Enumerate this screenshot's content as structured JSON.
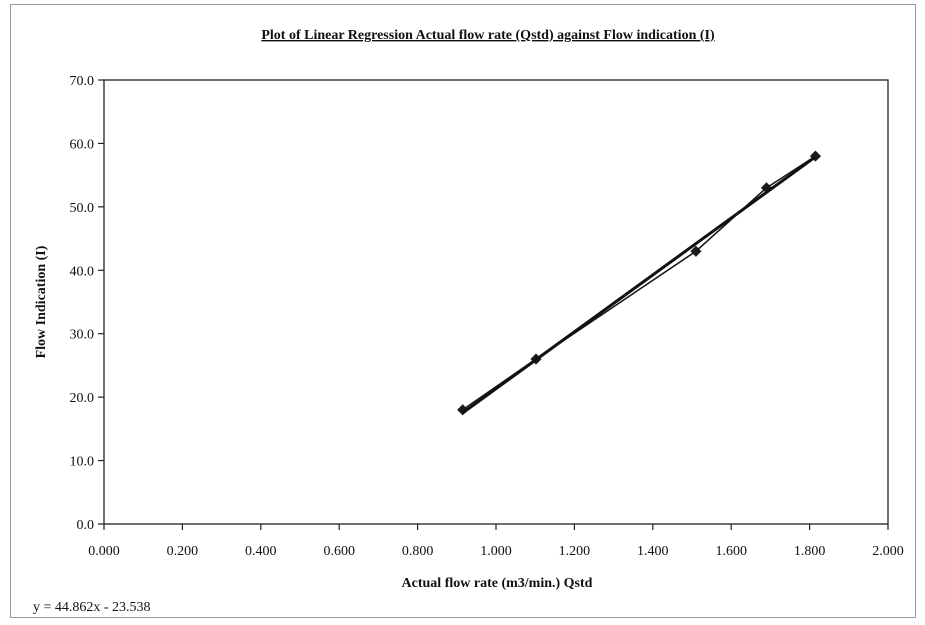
{
  "chart_data": {
    "type": "scatter",
    "title": "Plot of Linear Regression Actual flow rate (Qstd) against Flow indication (I)",
    "xlabel": "Actual flow rate (m3/min.) Qstd",
    "ylabel": "Flow Indication (I)",
    "xlim": [
      0,
      2.0
    ],
    "ylim": [
      0,
      70
    ],
    "x_ticks": [
      "0.000",
      "0.200",
      "0.400",
      "0.600",
      "0.800",
      "1.000",
      "1.200",
      "1.400",
      "1.600",
      "1.800",
      "2.000"
    ],
    "y_ticks": [
      "0.0",
      "10.0",
      "20.0",
      "30.0",
      "40.0",
      "50.0",
      "60.0",
      "70.0"
    ],
    "grid": false,
    "legend": "none",
    "series": [
      {
        "marker": "diamond",
        "connected": true,
        "color": "#1a1a1a",
        "points": [
          {
            "x": 0.915,
            "y": 18.0
          },
          {
            "x": 1.102,
            "y": 26.0
          },
          {
            "x": 1.51,
            "y": 43.0
          },
          {
            "x": 1.69,
            "y": 53.0
          },
          {
            "x": 1.815,
            "y": 58.0
          }
        ]
      }
    ],
    "trendline": {
      "type": "linear",
      "slope": 44.862,
      "intercept": -23.538,
      "x_range": [
        0.915,
        1.815
      ],
      "color": "#111111",
      "equation_label": "y = 44.862x - 23.538"
    }
  }
}
